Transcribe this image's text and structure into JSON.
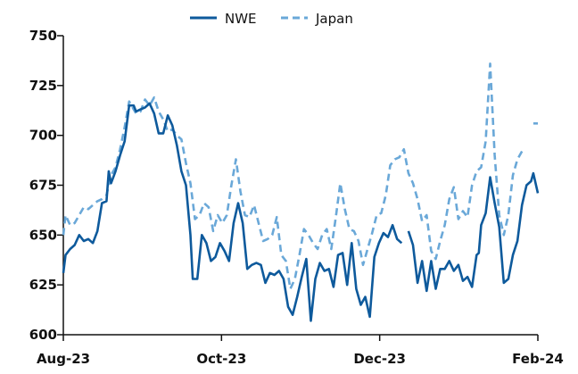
{
  "chart_data": {
    "type": "line",
    "title": "",
    "xlabel": "",
    "ylabel": "",
    "ylim": [
      600,
      750
    ],
    "yticks": [
      600,
      625,
      650,
      675,
      700,
      725,
      750
    ],
    "xticks": [
      "Aug-23",
      "Oct-23",
      "Dec-23",
      "Feb-24"
    ],
    "xlim": [
      "2023-08-01",
      "2024-02-01"
    ],
    "legend_position": "top-center",
    "grid": false,
    "series": [
      {
        "name": "NWE",
        "color": "#0e5a9c",
        "style": "solid",
        "points": [
          [
            "2023-08-01",
            631
          ],
          [
            "2023-08-02",
            640
          ],
          [
            "2023-08-04",
            643
          ],
          [
            "2023-08-06",
            645
          ],
          [
            "2023-08-08",
            650
          ],
          [
            "2023-08-10",
            647
          ],
          [
            "2023-08-12",
            648
          ],
          [
            "2023-08-14",
            646
          ],
          [
            "2023-08-16",
            652
          ],
          [
            "2023-08-18",
            666
          ],
          [
            "2023-08-20",
            667
          ],
          [
            "2023-08-21",
            682
          ],
          [
            "2023-08-22",
            676
          ],
          [
            "2023-08-24",
            682
          ],
          [
            "2023-08-26",
            690
          ],
          [
            "2023-08-28",
            697
          ],
          [
            "2023-08-30",
            715
          ],
          [
            "2023-09-01",
            715
          ],
          [
            "2023-09-02",
            712
          ],
          [
            "2023-09-04",
            713
          ],
          [
            "2023-09-06",
            714
          ],
          [
            "2023-09-08",
            716
          ],
          [
            "2023-09-10",
            711
          ],
          [
            "2023-09-12",
            701
          ],
          [
            "2023-09-14",
            701
          ],
          [
            "2023-09-16",
            710
          ],
          [
            "2023-09-18",
            705
          ],
          [
            "2023-09-20",
            695
          ],
          [
            "2023-09-22",
            682
          ],
          [
            "2023-09-24",
            675
          ],
          [
            "2023-09-26",
            650
          ],
          [
            "2023-09-27",
            628
          ],
          [
            "2023-09-29",
            628
          ],
          [
            "2023-10-01",
            650
          ],
          [
            "2023-10-03",
            646
          ],
          [
            "2023-10-05",
            637
          ],
          [
            "2023-10-07",
            639
          ],
          [
            "2023-10-09",
            646
          ],
          [
            "2023-10-11",
            642
          ],
          [
            "2023-10-13",
            637
          ],
          [
            "2023-10-15",
            656
          ],
          [
            "2023-10-17",
            666
          ],
          [
            "2023-10-19",
            656
          ],
          [
            "2023-10-21",
            633
          ],
          [
            "2023-10-23",
            635
          ],
          [
            "2023-10-25",
            636
          ],
          [
            "2023-10-27",
            635
          ],
          [
            "2023-10-29",
            626
          ],
          [
            "2023-10-31",
            631
          ],
          [
            "2023-11-02",
            630
          ],
          [
            "2023-11-04",
            632
          ],
          [
            "2023-11-06",
            628
          ],
          [
            "2023-11-08",
            614
          ],
          [
            "2023-11-10",
            610
          ],
          [
            "2023-11-12",
            619
          ],
          [
            "2023-11-14",
            629
          ],
          [
            "2023-11-16",
            638
          ],
          [
            "2023-11-18",
            607
          ],
          [
            "2023-11-20",
            628
          ],
          [
            "2023-11-22",
            636
          ],
          [
            "2023-11-24",
            632
          ],
          [
            "2023-11-26",
            633
          ],
          [
            "2023-11-28",
            624
          ],
          [
            "2023-11-30",
            640
          ],
          [
            "2023-12-02",
            641
          ],
          [
            "2023-12-04",
            625
          ],
          [
            "2023-12-06",
            646
          ],
          [
            "2023-12-08",
            623
          ],
          [
            "2023-12-10",
            615
          ],
          [
            "2023-12-12",
            619
          ],
          [
            "2023-12-14",
            609
          ],
          [
            "2023-12-16",
            639
          ],
          [
            "2023-12-18",
            646
          ],
          [
            "2023-12-20",
            651
          ],
          [
            "2023-12-22",
            649
          ],
          [
            "2023-12-24",
            655
          ],
          [
            "2023-12-26",
            648
          ],
          [
            "2023-12-28",
            646
          ],
          null,
          [
            "2023-12-31",
            652
          ],
          [
            "2024-01-02",
            645
          ],
          [
            "2024-01-04",
            626
          ],
          [
            "2024-01-06",
            637
          ],
          [
            "2024-01-08",
            622
          ],
          [
            "2024-01-10",
            637
          ],
          [
            "2024-01-12",
            623
          ],
          [
            "2024-01-14",
            633
          ],
          [
            "2024-01-16",
            633
          ],
          [
            "2024-01-18",
            637
          ],
          [
            "2024-01-20",
            632
          ],
          [
            "2024-01-22",
            635
          ],
          [
            "2024-01-24",
            627
          ],
          [
            "2024-01-26",
            629
          ],
          [
            "2024-01-28",
            624
          ],
          [
            "2024-01-30",
            640
          ],
          [
            "2024-01-31",
            641
          ],
          [
            "2024-02-01",
            655
          ],
          [
            "2024-02-03",
            661
          ],
          [
            "2024-02-05",
            679
          ],
          [
            "2024-02-07",
            666
          ],
          [
            "2024-02-09",
            654
          ],
          [
            "2024-02-11",
            626
          ],
          [
            "2024-02-13",
            628
          ],
          [
            "2024-02-15",
            640
          ],
          [
            "2024-02-17",
            647
          ],
          [
            "2024-02-19",
            665
          ],
          [
            "2024-02-21",
            675
          ],
          [
            "2024-02-23",
            677
          ],
          [
            "2024-02-24",
            681
          ],
          [
            "2024-02-26",
            671
          ]
        ]
      },
      {
        "name": "Japan",
        "color": "#6aa8d8",
        "style": "dashed",
        "points": [
          [
            "2023-08-01",
            650
          ],
          [
            "2023-08-02",
            660
          ],
          [
            "2023-08-04",
            655
          ],
          [
            "2023-08-06",
            656
          ],
          [
            "2023-08-08",
            660
          ],
          [
            "2023-08-10",
            664
          ],
          [
            "2023-08-12",
            663
          ],
          [
            "2023-08-14",
            665
          ],
          [
            "2023-08-16",
            667
          ],
          [
            "2023-08-18",
            668
          ],
          [
            "2023-08-20",
            670
          ],
          [
            "2023-08-22",
            680
          ],
          [
            "2023-08-24",
            684
          ],
          [
            "2023-08-26",
            693
          ],
          [
            "2023-08-28",
            704
          ],
          [
            "2023-08-30",
            717
          ],
          [
            "2023-09-01",
            713
          ],
          [
            "2023-09-02",
            711
          ],
          [
            "2023-09-04",
            712
          ],
          [
            "2023-09-06",
            718
          ],
          [
            "2023-09-08",
            715
          ],
          [
            "2023-09-10",
            719
          ],
          [
            "2023-09-12",
            712
          ],
          [
            "2023-09-14",
            708
          ],
          [
            "2023-09-16",
            702
          ],
          [
            "2023-09-18",
            703
          ],
          [
            "2023-09-20",
            700
          ],
          [
            "2023-09-22",
            698
          ],
          [
            "2023-09-24",
            686
          ],
          [
            "2023-09-26",
            676
          ],
          [
            "2023-09-28",
            658
          ],
          [
            "2023-09-30",
            660
          ],
          [
            "2023-10-02",
            666
          ],
          [
            "2023-10-04",
            664
          ],
          [
            "2023-10-06",
            652
          ],
          [
            "2023-10-08",
            660
          ],
          [
            "2023-10-10",
            656
          ],
          [
            "2023-10-12",
            660
          ],
          [
            "2023-10-14",
            675
          ],
          [
            "2023-10-16",
            688
          ],
          [
            "2023-10-18",
            672
          ],
          [
            "2023-10-20",
            660
          ],
          [
            "2023-10-22",
            659
          ],
          [
            "2023-10-24",
            665
          ],
          [
            "2023-10-26",
            656
          ],
          [
            "2023-10-28",
            647
          ],
          [
            "2023-10-30",
            648
          ],
          [
            "2023-11-01",
            650
          ],
          [
            "2023-11-03",
            659
          ],
          [
            "2023-11-05",
            640
          ],
          [
            "2023-11-07",
            637
          ],
          [
            "2023-11-09",
            623
          ],
          [
            "2023-11-11",
            628
          ],
          [
            "2023-11-13",
            640
          ],
          [
            "2023-11-15",
            653
          ],
          [
            "2023-11-17",
            650
          ],
          [
            "2023-11-19",
            646
          ],
          [
            "2023-11-21",
            643
          ],
          [
            "2023-11-23",
            650
          ],
          [
            "2023-11-25",
            653
          ],
          [
            "2023-11-27",
            643
          ],
          [
            "2023-11-29",
            659
          ],
          [
            "2023-12-01",
            676
          ],
          [
            "2023-12-03",
            663
          ],
          [
            "2023-12-05",
            653
          ],
          [
            "2023-12-07",
            652
          ],
          [
            "2023-12-09",
            647
          ],
          [
            "2023-12-11",
            635
          ],
          [
            "2023-12-13",
            643
          ],
          [
            "2023-12-15",
            651
          ],
          [
            "2023-12-17",
            660
          ],
          [
            "2023-12-19",
            661
          ],
          [
            "2023-12-21",
            670
          ],
          [
            "2023-12-23",
            685
          ],
          [
            "2023-12-25",
            688
          ],
          [
            "2023-12-27",
            689
          ],
          [
            "2023-12-29",
            693
          ],
          [
            "2023-12-31",
            681
          ],
          [
            "2024-01-02",
            676
          ],
          [
            "2024-01-04",
            668
          ],
          [
            "2024-01-06",
            657
          ],
          [
            "2024-01-08",
            660
          ],
          [
            "2024-01-10",
            642
          ],
          [
            "2024-01-12",
            638
          ],
          [
            "2024-01-14",
            647
          ],
          [
            "2024-01-16",
            655
          ],
          [
            "2024-01-18",
            668
          ],
          [
            "2024-01-20",
            674
          ],
          [
            "2024-01-22",
            658
          ],
          [
            "2024-01-24",
            662
          ],
          [
            "2024-01-26",
            659
          ],
          [
            "2024-01-28",
            675
          ],
          [
            "2024-01-30",
            682
          ],
          [
            "2024-02-01",
            684
          ],
          [
            "2024-02-03",
            697
          ],
          [
            "2024-02-05",
            736
          ],
          [
            "2024-02-07",
            690
          ],
          [
            "2024-02-09",
            660
          ],
          [
            "2024-02-11",
            650
          ],
          [
            "2024-02-13",
            660
          ],
          [
            "2024-02-15",
            680
          ],
          [
            "2024-02-17",
            688
          ],
          [
            "2024-02-19",
            692
          ],
          null,
          [
            "2024-02-24",
            706
          ],
          [
            "2024-02-26",
            706
          ]
        ]
      }
    ]
  }
}
